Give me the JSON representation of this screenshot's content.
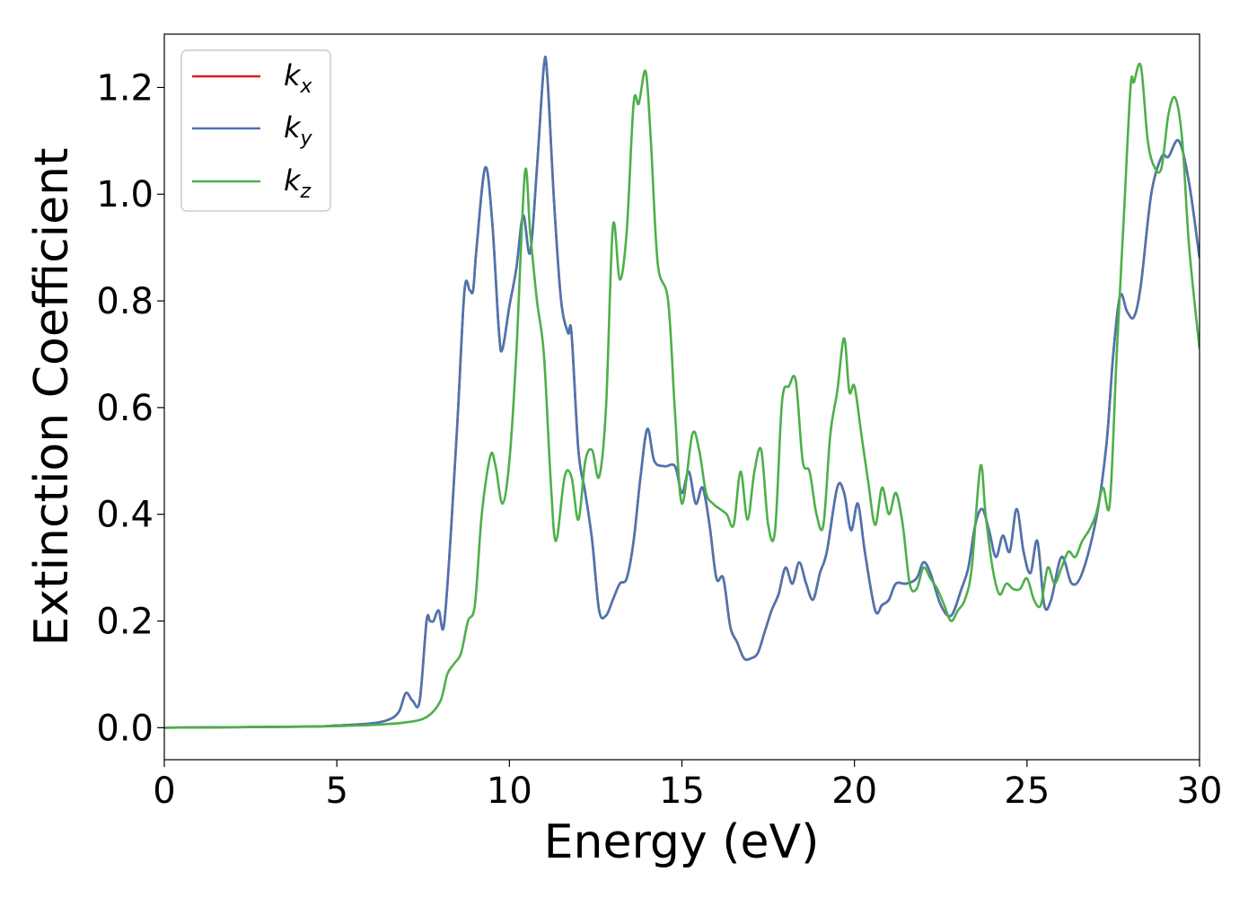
{
  "chart_data": {
    "type": "line",
    "xlabel": "Energy (eV)",
    "ylabel": "Extinction Coefficient",
    "xlim": [
      0,
      30
    ],
    "ylim": [
      -0.06,
      1.3
    ],
    "xticks": [
      "0",
      "5",
      "10",
      "15",
      "20",
      "25",
      "30"
    ],
    "yticks": [
      "0.0",
      "0.2",
      "0.4",
      "0.6",
      "0.8",
      "1.0",
      "1.2"
    ],
    "grid": false,
    "legend_position": "top-left",
    "series": [
      {
        "name": "k",
        "subscript": "x",
        "color": "#e41a1c",
        "x": [
          0,
          4,
          5,
          6,
          6.5,
          6.8,
          7.0,
          7.2,
          7.4,
          7.6,
          7.7,
          7.8,
          7.95,
          8.1,
          8.3,
          8.5,
          8.7,
          8.85,
          8.95,
          9.05,
          9.3,
          9.5,
          9.7,
          9.8,
          10.0,
          10.2,
          10.4,
          10.6,
          10.8,
          11.0,
          11.1,
          11.3,
          11.5,
          11.7,
          11.8,
          12.0,
          12.2,
          12.4,
          12.6,
          12.8,
          13.0,
          13.2,
          13.4,
          13.6,
          13.8,
          14.0,
          14.2,
          14.5,
          14.8,
          15.0,
          15.2,
          15.4,
          15.6,
          15.8,
          16.0,
          16.2,
          16.4,
          16.6,
          16.8,
          17.0,
          17.2,
          17.4,
          17.6,
          17.8,
          18.0,
          18.2,
          18.4,
          18.6,
          18.8,
          19.0,
          19.2,
          19.5,
          19.7,
          19.9,
          20.1,
          20.3,
          20.6,
          20.8,
          21.0,
          21.2,
          21.5,
          21.8,
          22.0,
          22.2,
          22.5,
          22.8,
          23.1,
          23.3,
          23.5,
          23.7,
          23.9,
          24.1,
          24.3,
          24.5,
          24.7,
          24.9,
          25.1,
          25.3,
          25.5,
          25.7,
          26.0,
          26.3,
          26.6,
          27.0,
          27.3,
          27.5,
          27.7,
          27.9,
          28.1,
          28.3,
          28.6,
          28.9,
          29.1,
          29.4,
          29.7,
          30.0
        ],
        "y": [
          0.0,
          0.002,
          0.004,
          0.008,
          0.015,
          0.03,
          0.065,
          0.05,
          0.05,
          0.2,
          0.2,
          0.2,
          0.22,
          0.19,
          0.36,
          0.58,
          0.82,
          0.82,
          0.82,
          0.9,
          1.05,
          0.95,
          0.74,
          0.71,
          0.79,
          0.86,
          0.96,
          0.89,
          1.05,
          1.24,
          1.22,
          0.98,
          0.8,
          0.74,
          0.74,
          0.52,
          0.44,
          0.35,
          0.22,
          0.21,
          0.24,
          0.27,
          0.28,
          0.35,
          0.47,
          0.56,
          0.5,
          0.49,
          0.49,
          0.44,
          0.48,
          0.42,
          0.45,
          0.38,
          0.28,
          0.28,
          0.19,
          0.16,
          0.13,
          0.13,
          0.14,
          0.18,
          0.22,
          0.25,
          0.3,
          0.27,
          0.31,
          0.27,
          0.24,
          0.29,
          0.33,
          0.45,
          0.44,
          0.37,
          0.42,
          0.33,
          0.22,
          0.23,
          0.24,
          0.27,
          0.27,
          0.28,
          0.31,
          0.29,
          0.23,
          0.21,
          0.26,
          0.3,
          0.38,
          0.41,
          0.37,
          0.32,
          0.36,
          0.33,
          0.41,
          0.33,
          0.29,
          0.35,
          0.23,
          0.24,
          0.32,
          0.27,
          0.29,
          0.39,
          0.53,
          0.7,
          0.81,
          0.78,
          0.77,
          0.83,
          1.0,
          1.07,
          1.07,
          1.1,
          1.02,
          0.88
        ]
      },
      {
        "name": "k",
        "subscript": "y",
        "color": "#4a76b0",
        "x": [
          0,
          4,
          5,
          6,
          6.5,
          6.8,
          7.0,
          7.2,
          7.4,
          7.6,
          7.7,
          7.8,
          7.95,
          8.1,
          8.3,
          8.5,
          8.7,
          8.85,
          8.95,
          9.05,
          9.3,
          9.5,
          9.7,
          9.8,
          10.0,
          10.2,
          10.4,
          10.6,
          10.8,
          11.0,
          11.1,
          11.3,
          11.5,
          11.7,
          11.8,
          12.0,
          12.2,
          12.4,
          12.6,
          12.8,
          13.0,
          13.2,
          13.4,
          13.6,
          13.8,
          14.0,
          14.2,
          14.5,
          14.8,
          15.0,
          15.2,
          15.4,
          15.6,
          15.8,
          16.0,
          16.2,
          16.4,
          16.6,
          16.8,
          17.0,
          17.2,
          17.4,
          17.6,
          17.8,
          18.0,
          18.2,
          18.4,
          18.6,
          18.8,
          19.0,
          19.2,
          19.5,
          19.7,
          19.9,
          20.1,
          20.3,
          20.6,
          20.8,
          21.0,
          21.2,
          21.5,
          21.8,
          22.0,
          22.2,
          22.5,
          22.8,
          23.1,
          23.3,
          23.5,
          23.7,
          23.9,
          24.1,
          24.3,
          24.5,
          24.7,
          24.9,
          25.1,
          25.3,
          25.5,
          25.7,
          26.0,
          26.3,
          26.6,
          27.0,
          27.3,
          27.5,
          27.7,
          27.9,
          28.1,
          28.3,
          28.6,
          28.9,
          29.1,
          29.4,
          29.7,
          30.0
        ],
        "y": [
          0.0,
          0.002,
          0.004,
          0.008,
          0.015,
          0.03,
          0.065,
          0.05,
          0.05,
          0.2,
          0.2,
          0.2,
          0.22,
          0.19,
          0.36,
          0.58,
          0.82,
          0.82,
          0.82,
          0.9,
          1.05,
          0.95,
          0.74,
          0.71,
          0.79,
          0.86,
          0.96,
          0.89,
          1.05,
          1.24,
          1.22,
          0.98,
          0.8,
          0.74,
          0.74,
          0.52,
          0.44,
          0.35,
          0.22,
          0.21,
          0.24,
          0.27,
          0.28,
          0.35,
          0.47,
          0.56,
          0.5,
          0.49,
          0.49,
          0.44,
          0.48,
          0.42,
          0.45,
          0.38,
          0.28,
          0.28,
          0.19,
          0.16,
          0.13,
          0.13,
          0.14,
          0.18,
          0.22,
          0.25,
          0.3,
          0.27,
          0.31,
          0.27,
          0.24,
          0.29,
          0.33,
          0.45,
          0.44,
          0.37,
          0.42,
          0.33,
          0.22,
          0.23,
          0.24,
          0.27,
          0.27,
          0.28,
          0.31,
          0.29,
          0.23,
          0.21,
          0.26,
          0.3,
          0.38,
          0.41,
          0.37,
          0.32,
          0.36,
          0.33,
          0.41,
          0.33,
          0.29,
          0.35,
          0.23,
          0.24,
          0.32,
          0.27,
          0.29,
          0.39,
          0.53,
          0.7,
          0.81,
          0.78,
          0.77,
          0.83,
          1.0,
          1.07,
          1.07,
          1.1,
          1.02,
          0.88
        ]
      },
      {
        "name": "k",
        "subscript": "z",
        "color": "#4daf4a",
        "x": [
          0,
          4,
          5,
          6,
          7,
          7.6,
          8.0,
          8.2,
          8.4,
          8.6,
          8.8,
          9.0,
          9.2,
          9.45,
          9.6,
          9.8,
          10.0,
          10.2,
          10.45,
          10.6,
          10.8,
          11.0,
          11.2,
          11.35,
          11.6,
          11.8,
          12.0,
          12.2,
          12.4,
          12.6,
          12.8,
          13.0,
          13.2,
          13.4,
          13.6,
          13.75,
          13.95,
          14.1,
          14.3,
          14.6,
          14.8,
          15.0,
          15.3,
          15.5,
          15.7,
          15.9,
          16.1,
          16.3,
          16.5,
          16.7,
          16.9,
          17.1,
          17.3,
          17.5,
          17.7,
          17.9,
          18.1,
          18.3,
          18.5,
          18.7,
          18.9,
          19.1,
          19.3,
          19.5,
          19.7,
          19.85,
          20.0,
          20.2,
          20.4,
          20.6,
          20.8,
          21.0,
          21.2,
          21.4,
          21.6,
          21.8,
          22.0,
          22.2,
          22.4,
          22.6,
          22.8,
          23.0,
          23.2,
          23.4,
          23.65,
          23.8,
          24.0,
          24.2,
          24.4,
          24.6,
          24.8,
          25.0,
          25.2,
          25.4,
          25.6,
          25.8,
          26.0,
          26.2,
          26.4,
          26.6,
          26.8,
          27.0,
          27.2,
          27.4,
          27.6,
          27.8,
          28.0,
          28.1,
          28.3,
          28.5,
          28.7,
          28.9,
          29.1,
          29.3,
          29.5,
          29.7,
          30.0
        ],
        "y": [
          0.0,
          0.002,
          0.003,
          0.005,
          0.01,
          0.02,
          0.05,
          0.1,
          0.12,
          0.14,
          0.2,
          0.23,
          0.4,
          0.51,
          0.49,
          0.42,
          0.5,
          0.7,
          1.04,
          0.93,
          0.8,
          0.7,
          0.46,
          0.35,
          0.47,
          0.47,
          0.39,
          0.5,
          0.52,
          0.47,
          0.6,
          0.94,
          0.84,
          0.93,
          1.17,
          1.17,
          1.23,
          1.1,
          0.87,
          0.8,
          0.59,
          0.42,
          0.55,
          0.52,
          0.44,
          0.42,
          0.41,
          0.4,
          0.38,
          0.48,
          0.39,
          0.48,
          0.52,
          0.38,
          0.37,
          0.61,
          0.64,
          0.65,
          0.5,
          0.48,
          0.4,
          0.38,
          0.55,
          0.63,
          0.73,
          0.63,
          0.64,
          0.55,
          0.46,
          0.38,
          0.45,
          0.4,
          0.44,
          0.38,
          0.27,
          0.26,
          0.3,
          0.28,
          0.26,
          0.23,
          0.2,
          0.22,
          0.24,
          0.3,
          0.49,
          0.4,
          0.3,
          0.25,
          0.27,
          0.26,
          0.26,
          0.28,
          0.24,
          0.23,
          0.3,
          0.27,
          0.3,
          0.33,
          0.32,
          0.35,
          0.37,
          0.4,
          0.45,
          0.42,
          0.7,
          0.95,
          1.2,
          1.21,
          1.24,
          1.1,
          1.05,
          1.05,
          1.15,
          1.18,
          1.1,
          0.9,
          0.71
        ]
      }
    ]
  }
}
